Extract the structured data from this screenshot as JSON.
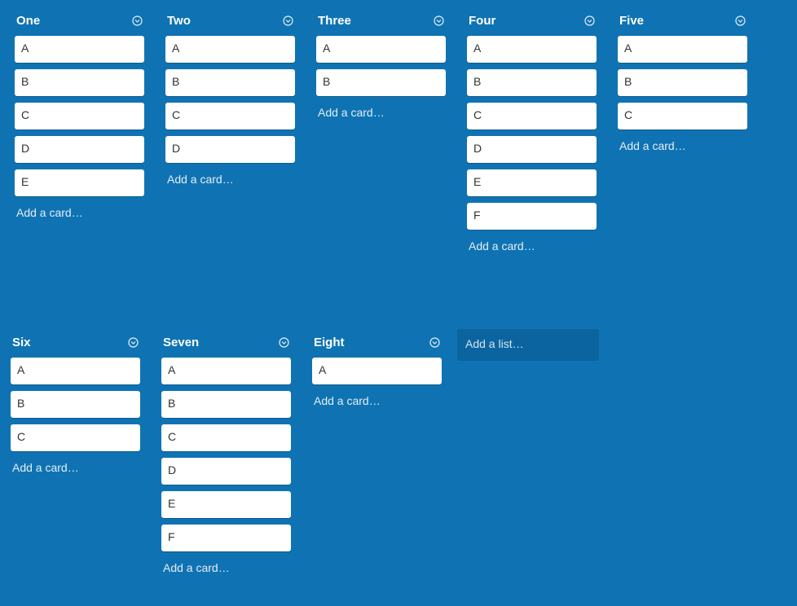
{
  "board": {
    "rows": [
      [
        {
          "title": "One",
          "cards": [
            "A",
            "B",
            "C",
            "D",
            "E"
          ]
        },
        {
          "title": "Two",
          "cards": [
            "A",
            "B",
            "C",
            "D"
          ]
        },
        {
          "title": "Three",
          "cards": [
            "A",
            "B"
          ]
        },
        {
          "title": "Four",
          "cards": [
            "A",
            "B",
            "C",
            "D",
            "E",
            "F"
          ]
        },
        {
          "title": "Five",
          "cards": [
            "A",
            "B",
            "C"
          ]
        }
      ],
      [
        {
          "title": "Six",
          "cards": [
            "A",
            "B",
            "C"
          ]
        },
        {
          "title": "Seven",
          "cards": [
            "A",
            "B",
            "C",
            "D",
            "E",
            "F"
          ]
        },
        {
          "title": "Eight",
          "cards": [
            "A"
          ]
        }
      ]
    ],
    "add_card_label": "Add a card…",
    "add_list_label": "Add a list…"
  }
}
